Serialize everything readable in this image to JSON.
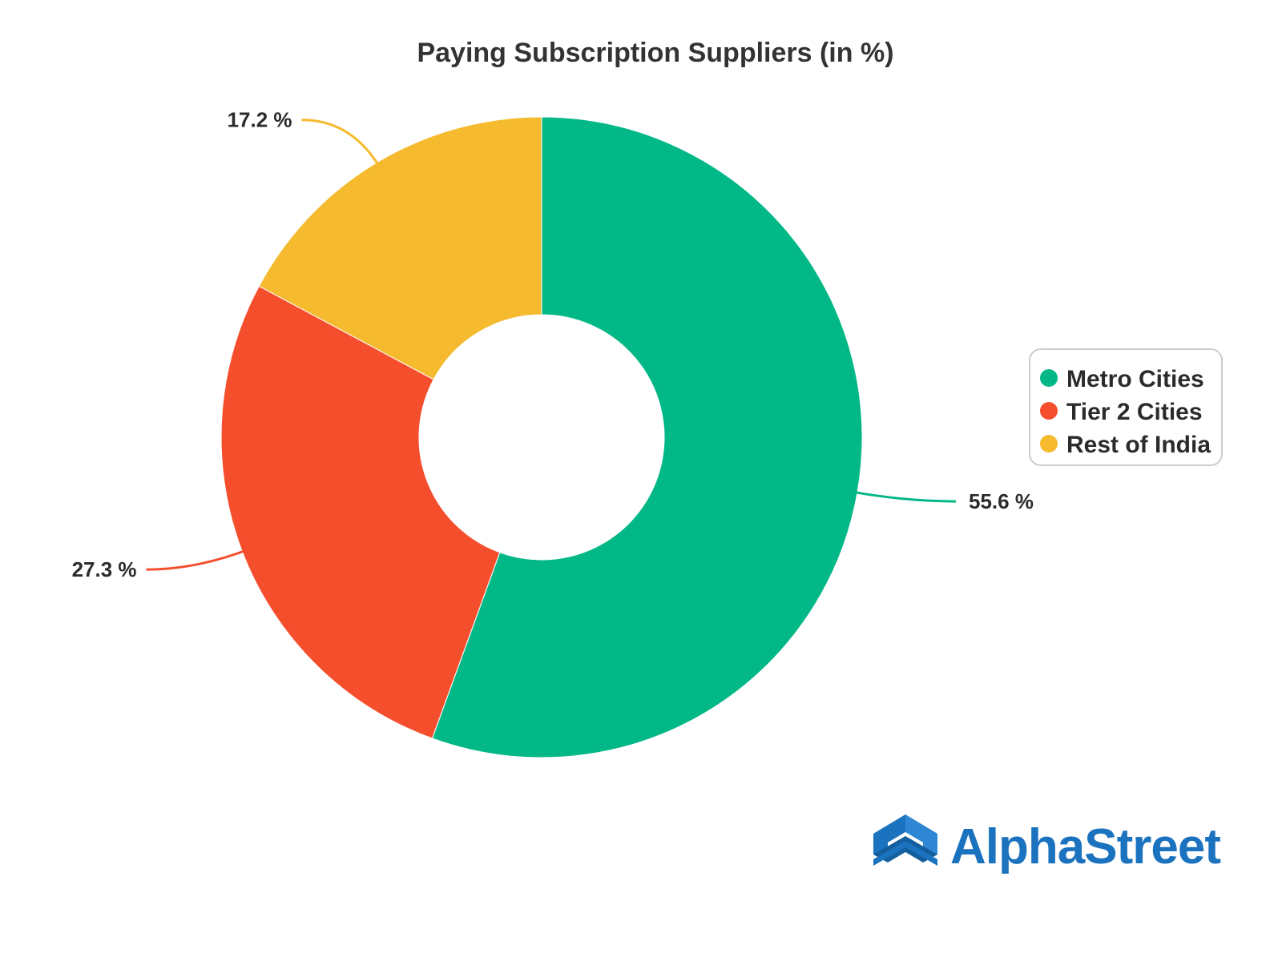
{
  "chart_data": {
    "type": "pie",
    "title": "Paying Subscription Suppliers (in %)",
    "donut": true,
    "categories": [
      "Metro Cities",
      "Tier 2 Cities",
      "Rest of India"
    ],
    "values": [
      55.6,
      27.3,
      17.2
    ],
    "labels": [
      "55.6 %",
      "27.3 %",
      "17.2 %"
    ],
    "colors": [
      "#02B887",
      "#F54E2D",
      "#F5BA2E"
    ],
    "legend_position": "right"
  },
  "brand": {
    "name": "AlphaStreet",
    "color": "#1B72BE",
    "logo_icon": "chevron-up-cube-icon"
  }
}
